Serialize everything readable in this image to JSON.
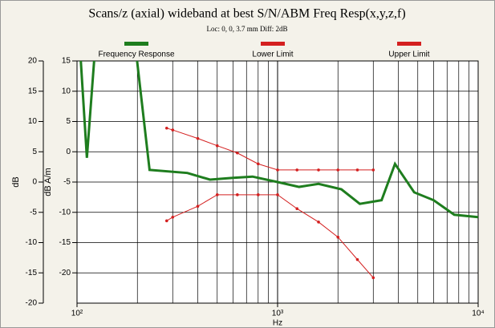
{
  "chart_data": {
    "type": "line",
    "title": "Scans/z (axial) wideband at best S/N/ABM Freq Resp(x,y,z,f)",
    "subtitle": "Loc: 0, 0, 3.7 mm Diff: 2dB",
    "xlabel": "Hz",
    "ylabel": "dB",
    "y2label": "dB A/m",
    "xscale": "log",
    "grid": true,
    "xlim": [
      100,
      10000
    ],
    "xticks": [
      {
        "value": 100,
        "label": "10²"
      },
      {
        "value": 1000,
        "label": "10³"
      },
      {
        "value": 10000,
        "label": "10⁴"
      }
    ],
    "ylim": [
      -20,
      20
    ],
    "yticks": [
      20,
      15,
      10,
      5,
      0,
      -5,
      -10,
      -15,
      -20
    ],
    "y2lim": [
      -25,
      15
    ],
    "y2ticks": [
      15,
      10,
      5,
      0,
      -5,
      -10,
      -15,
      -20
    ],
    "series": [
      {
        "name": "Frequency Response",
        "color": "#1e7d1e",
        "width": 3,
        "markers": false,
        "x": [
          100,
          112,
          135,
          170,
          230,
          355,
          460,
          600,
          750,
          1000,
          1280,
          1600,
          2080,
          2570,
          3300,
          3850,
          4800,
          6000,
          7600,
          10000
        ],
        "values": [
          30,
          4,
          40,
          40,
          2,
          1.5,
          0.4,
          0.7,
          0.9,
          0,
          -0.8,
          -0.3,
          -1.2,
          -3.6,
          -3,
          3,
          -1.7,
          -3,
          -5.4,
          -5.8
        ]
      },
      {
        "name": "Lower Limit",
        "color": "#d42020",
        "width": 1,
        "markers": true,
        "x": [
          280,
          300,
          400,
          500,
          630,
          800,
          1000,
          1250,
          1600,
          2000,
          2500,
          3000
        ],
        "values": [
          -6.4,
          -5.8,
          -4,
          -2.1,
          -2.1,
          -2.1,
          -2.1,
          -4.4,
          -6.6,
          -9.1,
          -12.8,
          -15.8
        ]
      },
      {
        "name": "Upper Limit",
        "color": "#d42020",
        "width": 1,
        "markers": true,
        "x": [
          280,
          300,
          400,
          500,
          630,
          800,
          1000,
          1250,
          1600,
          2000,
          2500,
          3000
        ],
        "values": [
          8.9,
          8.6,
          7.2,
          6,
          4.8,
          3,
          2,
          2,
          2,
          2,
          2,
          2
        ]
      }
    ]
  }
}
